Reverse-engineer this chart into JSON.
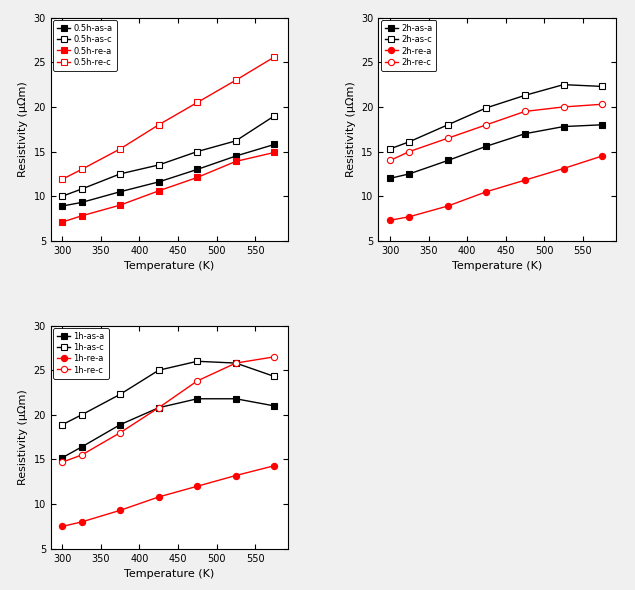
{
  "temp": [
    300,
    325,
    375,
    425,
    475,
    525,
    575
  ],
  "chart1": {
    "series": [
      {
        "label": "0.5h-as-a",
        "color": "black",
        "marker": "s",
        "filled": true,
        "data": [
          8.9,
          9.3,
          10.5,
          11.6,
          13.0,
          14.5,
          15.8
        ]
      },
      {
        "label": "0.5h-as-c",
        "color": "black",
        "marker": "s",
        "filled": false,
        "data": [
          10.0,
          10.8,
          12.5,
          13.5,
          15.0,
          16.2,
          19.0
        ]
      },
      {
        "label": "0.5h-re-a",
        "color": "red",
        "marker": "s",
        "filled": true,
        "data": [
          7.1,
          7.8,
          9.0,
          10.6,
          12.1,
          13.9,
          14.9
        ]
      },
      {
        "label": "0.5h-re-c",
        "color": "red",
        "marker": "s",
        "filled": false,
        "data": [
          11.9,
          13.0,
          15.3,
          18.0,
          20.5,
          23.0,
          25.6
        ]
      }
    ]
  },
  "chart2": {
    "series": [
      {
        "label": "2h-as-a",
        "color": "black",
        "marker": "s",
        "filled": true,
        "data": [
          12.0,
          12.5,
          14.0,
          15.6,
          17.0,
          17.8,
          18.0
        ]
      },
      {
        "label": "2h-as-c",
        "color": "black",
        "marker": "s",
        "filled": false,
        "data": [
          15.3,
          16.1,
          18.0,
          19.9,
          21.3,
          22.5,
          22.3
        ]
      },
      {
        "label": "2h-re-a",
        "color": "red",
        "marker": "o",
        "filled": true,
        "data": [
          7.3,
          7.7,
          8.9,
          10.5,
          11.8,
          13.1,
          14.5
        ]
      },
      {
        "label": "2h-re-c",
        "color": "red",
        "marker": "o",
        "filled": false,
        "data": [
          14.0,
          15.0,
          16.5,
          18.0,
          19.5,
          20.0,
          20.3
        ]
      }
    ]
  },
  "chart3": {
    "series": [
      {
        "label": "1h-as-a",
        "color": "black",
        "marker": "s",
        "filled": true,
        "data": [
          15.2,
          16.4,
          18.9,
          20.8,
          21.8,
          21.8,
          21.0
        ]
      },
      {
        "label": "1h-as-c",
        "color": "black",
        "marker": "s",
        "filled": false,
        "data": [
          18.9,
          20.0,
          22.3,
          25.0,
          26.0,
          25.8,
          24.3
        ]
      },
      {
        "label": "1h-re-a",
        "color": "red",
        "marker": "o",
        "filled": true,
        "data": [
          7.5,
          8.0,
          9.3,
          10.8,
          12.0,
          13.2,
          14.3
        ]
      },
      {
        "label": "1h-re-c",
        "color": "red",
        "marker": "o",
        "filled": false,
        "data": [
          14.7,
          15.5,
          18.0,
          20.8,
          23.8,
          25.8,
          26.5
        ]
      }
    ]
  },
  "xlabel": "Temperature (K)",
  "ylabel": "Resistivity (μΩm)",
  "ylim": [
    5,
    30
  ],
  "xlim": [
    285,
    593
  ],
  "xticks": [
    300,
    350,
    400,
    450,
    500,
    550
  ],
  "yticks": [
    5,
    10,
    15,
    20,
    25,
    30
  ],
  "fig_bgcolor": "#f0f0f0",
  "markersize": 4.5,
  "linewidth": 1.0,
  "fontsize_tick": 7,
  "fontsize_label": 8,
  "fontsize_legend": 6
}
